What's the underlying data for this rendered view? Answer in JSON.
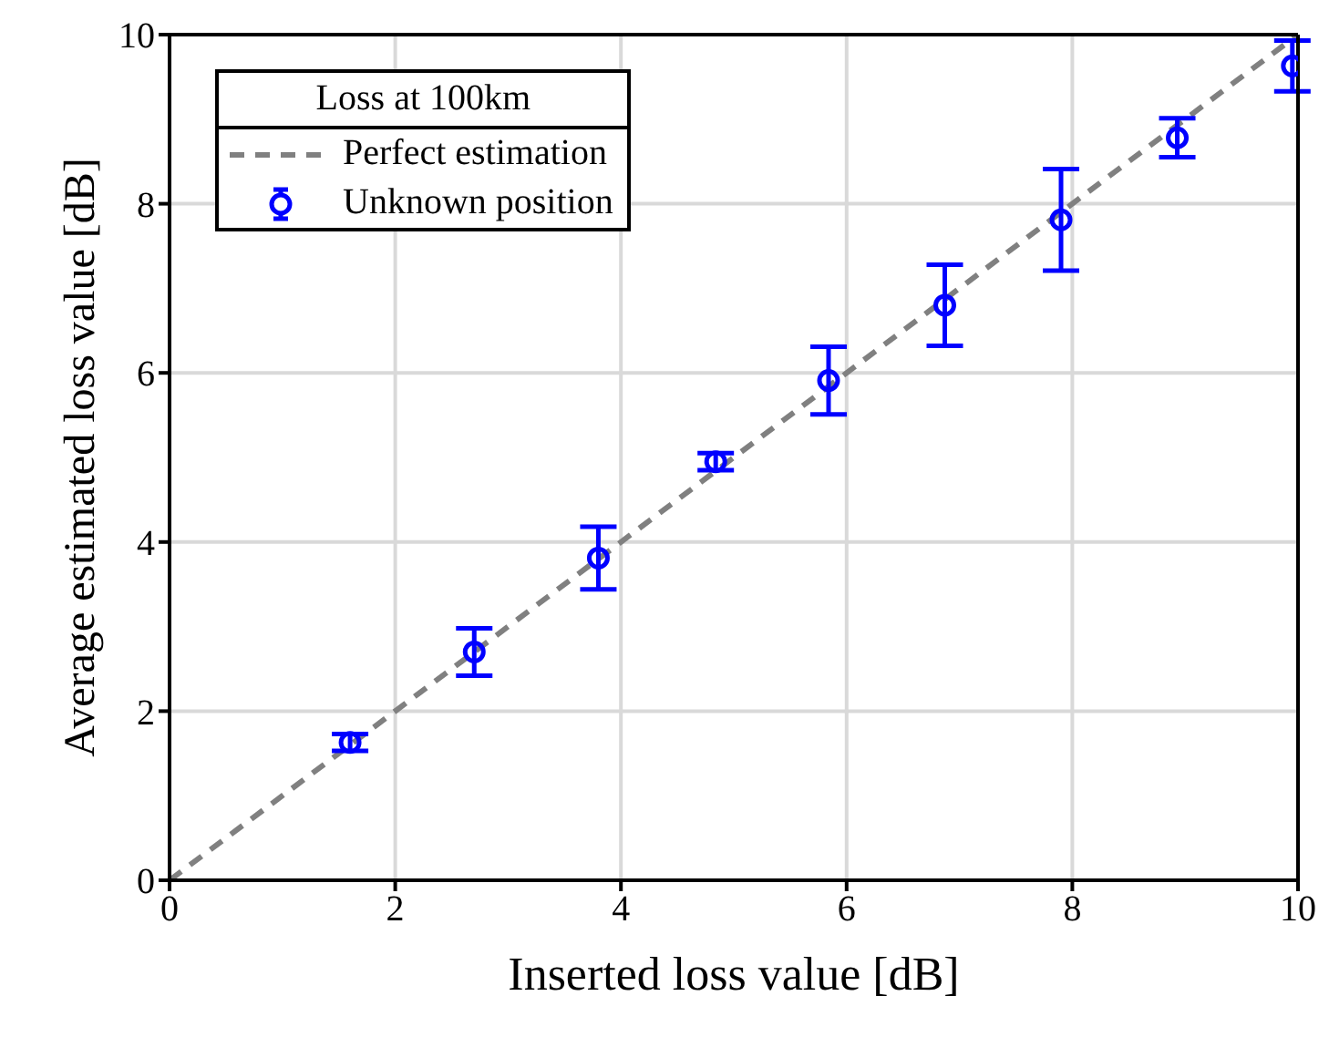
{
  "chart_data": {
    "type": "scatter",
    "xlabel": "Inserted loss value [dB]",
    "ylabel": "Average estimated loss value [dB]",
    "legend_title": "Loss at 100km",
    "xlim": [
      0,
      10
    ],
    "xticks": [
      0,
      2,
      4,
      6,
      8,
      10
    ],
    "ylim": [
      0,
      10
    ],
    "yticks": [
      0,
      2,
      4,
      6,
      8,
      10
    ],
    "grid": true,
    "legend": "top left",
    "series": [
      {
        "name": "Perfect estimation",
        "type": "line",
        "color": "#808080",
        "line_style": "dashed",
        "marker": "none",
        "x": [
          0,
          10
        ],
        "values": [
          0,
          10
        ]
      },
      {
        "name": "Unknown position",
        "type": "scatter",
        "color": "#0000ff",
        "marker": "circle",
        "x": [
          1.6,
          2.7,
          3.8,
          4.84,
          5.84,
          6.87,
          7.9,
          8.93,
          9.95
        ],
        "values": [
          1.63,
          2.7,
          3.81,
          4.95,
          5.91,
          6.8,
          7.81,
          8.78,
          9.63
        ],
        "errors": [
          0.1,
          0.28,
          0.37,
          0.1,
          0.4,
          0.48,
          0.6,
          0.23,
          0.3
        ]
      }
    ]
  }
}
